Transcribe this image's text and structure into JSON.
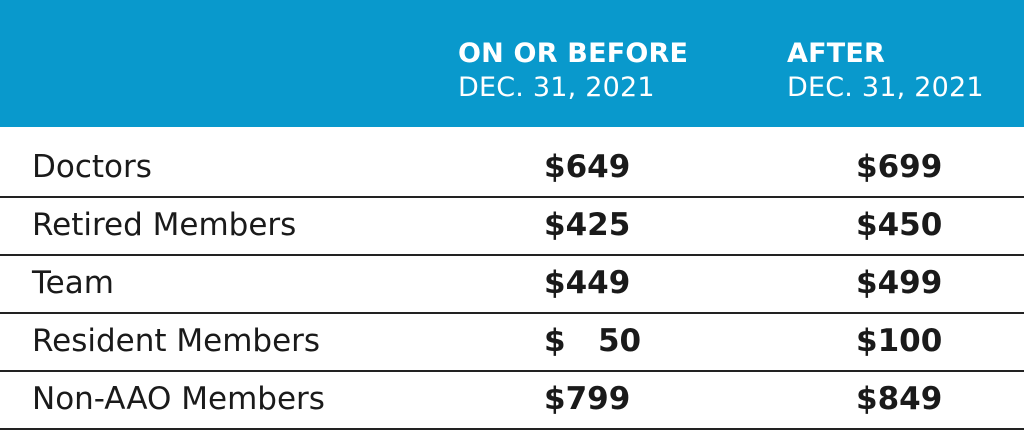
{
  "header": {
    "background_color": "#0999cc",
    "before_line1": "ON OR BEFORE",
    "before_line2": "DEC. 31, 2021",
    "after_line1": "AFTER",
    "after_line2": "DEC. 31, 2021"
  },
  "rows": [
    {
      "label": "Doctors",
      "before": "$649",
      "after": "$699"
    },
    {
      "label": "Retired Members",
      "before": "$425",
      "after": "$450"
    },
    {
      "label": "Team",
      "before": "$449",
      "after": "$499"
    },
    {
      "label": "Resident Members",
      "before": "$   50",
      "after": "$100"
    },
    {
      "label": "Non-AAO Members",
      "before": "$799",
      "after": "$849"
    }
  ]
}
